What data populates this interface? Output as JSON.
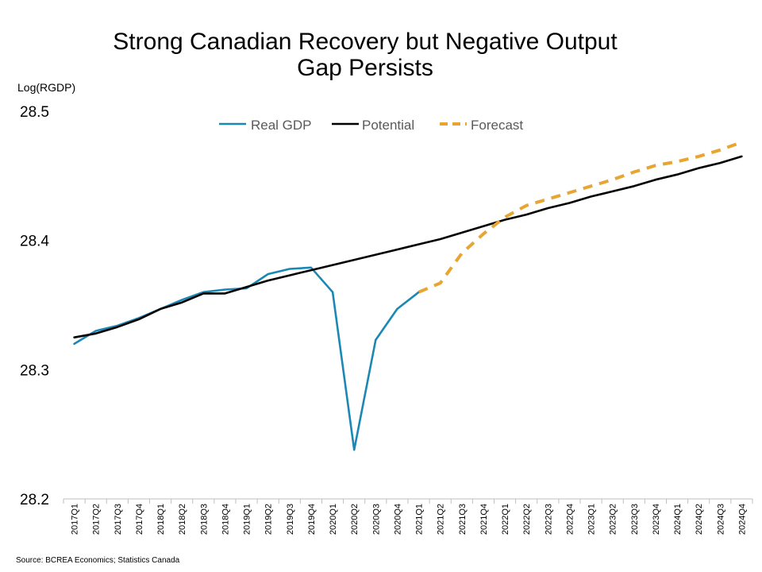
{
  "chart_data": {
    "type": "line",
    "title_line1": "Strong Canadian Recovery but Negative Output",
    "title_line2": "Gap Persists",
    "ylabel": "Log(RGDP)",
    "source": "Source: BCREA Economics; Statistics Canada",
    "ylim": [
      28.2,
      28.5
    ],
    "yticks": [
      "28.2",
      "28.3",
      "28.4",
      "28.5"
    ],
    "grid": false,
    "legend_position": "top",
    "categories": [
      "2017Q1",
      "2017Q2",
      "2017Q3",
      "2017Q4",
      "2018Q1",
      "2018Q2",
      "2018Q3",
      "2018Q4",
      "2019Q1",
      "2019Q2",
      "2019Q3",
      "2019Q4",
      "2020Q1",
      "2020Q2",
      "2020Q3",
      "2020Q4",
      "2021Q1",
      "2021Q2",
      "2021Q3",
      "2021Q4",
      "2022Q1",
      "2022Q2",
      "2022Q3",
      "2022Q4",
      "2023Q1",
      "2023Q2",
      "2023Q3",
      "2023Q4",
      "2024Q1",
      "2024Q2",
      "2024Q3",
      "2024Q4"
    ],
    "series": [
      {
        "name": "Real GDP",
        "color": "#1b87b4",
        "dash": false,
        "values": [
          28.32,
          28.33,
          28.334,
          28.34,
          28.347,
          28.354,
          28.36,
          28.362,
          28.363,
          28.374,
          28.378,
          28.379,
          28.36,
          28.238,
          28.323,
          28.347,
          28.36,
          null,
          null,
          null,
          null,
          null,
          null,
          null,
          null,
          null,
          null,
          null,
          null,
          null,
          null,
          null
        ]
      },
      {
        "name": "Potential",
        "color": "#000000",
        "dash": false,
        "values": [
          28.325,
          28.328,
          28.333,
          28.339,
          28.347,
          28.352,
          28.359,
          28.359,
          28.364,
          28.369,
          28.373,
          28.377,
          28.381,
          28.385,
          28.389,
          28.393,
          28.397,
          28.401,
          28.406,
          28.411,
          28.416,
          28.42,
          28.425,
          28.429,
          28.434,
          28.438,
          28.442,
          28.447,
          28.451,
          28.456,
          28.46,
          28.465
        ]
      },
      {
        "name": "Forecast",
        "color": "#e8a531",
        "dash": true,
        "values": [
          null,
          null,
          null,
          null,
          null,
          null,
          null,
          null,
          null,
          null,
          null,
          null,
          null,
          null,
          null,
          null,
          28.36,
          28.367,
          28.39,
          28.405,
          28.418,
          28.427,
          28.432,
          28.437,
          28.442,
          28.447,
          28.453,
          28.458,
          28.461,
          28.465,
          28.47,
          28.476
        ]
      }
    ]
  }
}
